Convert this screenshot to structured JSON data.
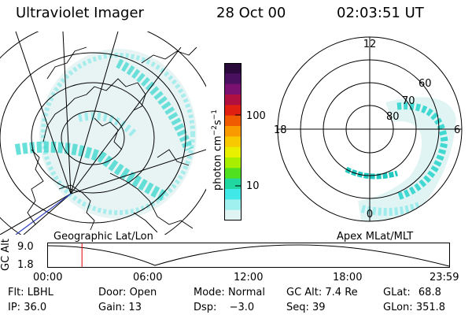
{
  "header": {
    "title": "Ultraviolet Imager",
    "date": "28 Oct 00",
    "time": "02:03:51 UT"
  },
  "colorbar": {
    "unit": "photon cm",
    "unit_sup1": "−2",
    "unit_mid": "s",
    "unit_sup2": "−1",
    "ticks": [
      "100",
      "10"
    ],
    "colors": [
      "#2a0a3a",
      "#4a1060",
      "#7a1070",
      "#b01040",
      "#e02010",
      "#f05a00",
      "#f89a00",
      "#f8c800",
      "#e8f000",
      "#a8ee00",
      "#50e020",
      "#20d8a0",
      "#40e8e8",
      "#a0f0f0",
      "#e0f4f4"
    ]
  },
  "left_panel": {
    "caption": "Geographic Lat/Lon"
  },
  "right_panel": {
    "caption": "Apex MLat/MLT",
    "hour_labels": {
      "top": "12",
      "left": "18",
      "right": "6",
      "bottom": "0"
    },
    "lat_labels": [
      "60",
      "70",
      "80"
    ]
  },
  "timeline": {
    "ylabel": "GC Alt",
    "y_ticks": [
      "9.0",
      "1.8"
    ],
    "x_ticks": [
      "00:00",
      "06:00",
      "12:00",
      "18:00",
      "23:59"
    ],
    "current_time_fraction": 0.0847
  },
  "info": {
    "row1": [
      {
        "key": "Flt:",
        "value": "LBHL"
      },
      {
        "key": "Door:",
        "value": "Open"
      },
      {
        "key": "Mode:",
        "value": "Normal"
      },
      {
        "key": "GC Alt:",
        "value": "7.4 Re"
      },
      {
        "key": "GLat:",
        "value": "68.8"
      }
    ],
    "row2": [
      {
        "key": "IP:",
        "value": "36.0"
      },
      {
        "key": "Gain:",
        "value": "13"
      },
      {
        "key": "Dsp:",
        "value": "−3.0"
      },
      {
        "key": "Seq:",
        "value": "39"
      },
      {
        "key": "GLon:",
        "value": "351.8"
      }
    ]
  }
}
